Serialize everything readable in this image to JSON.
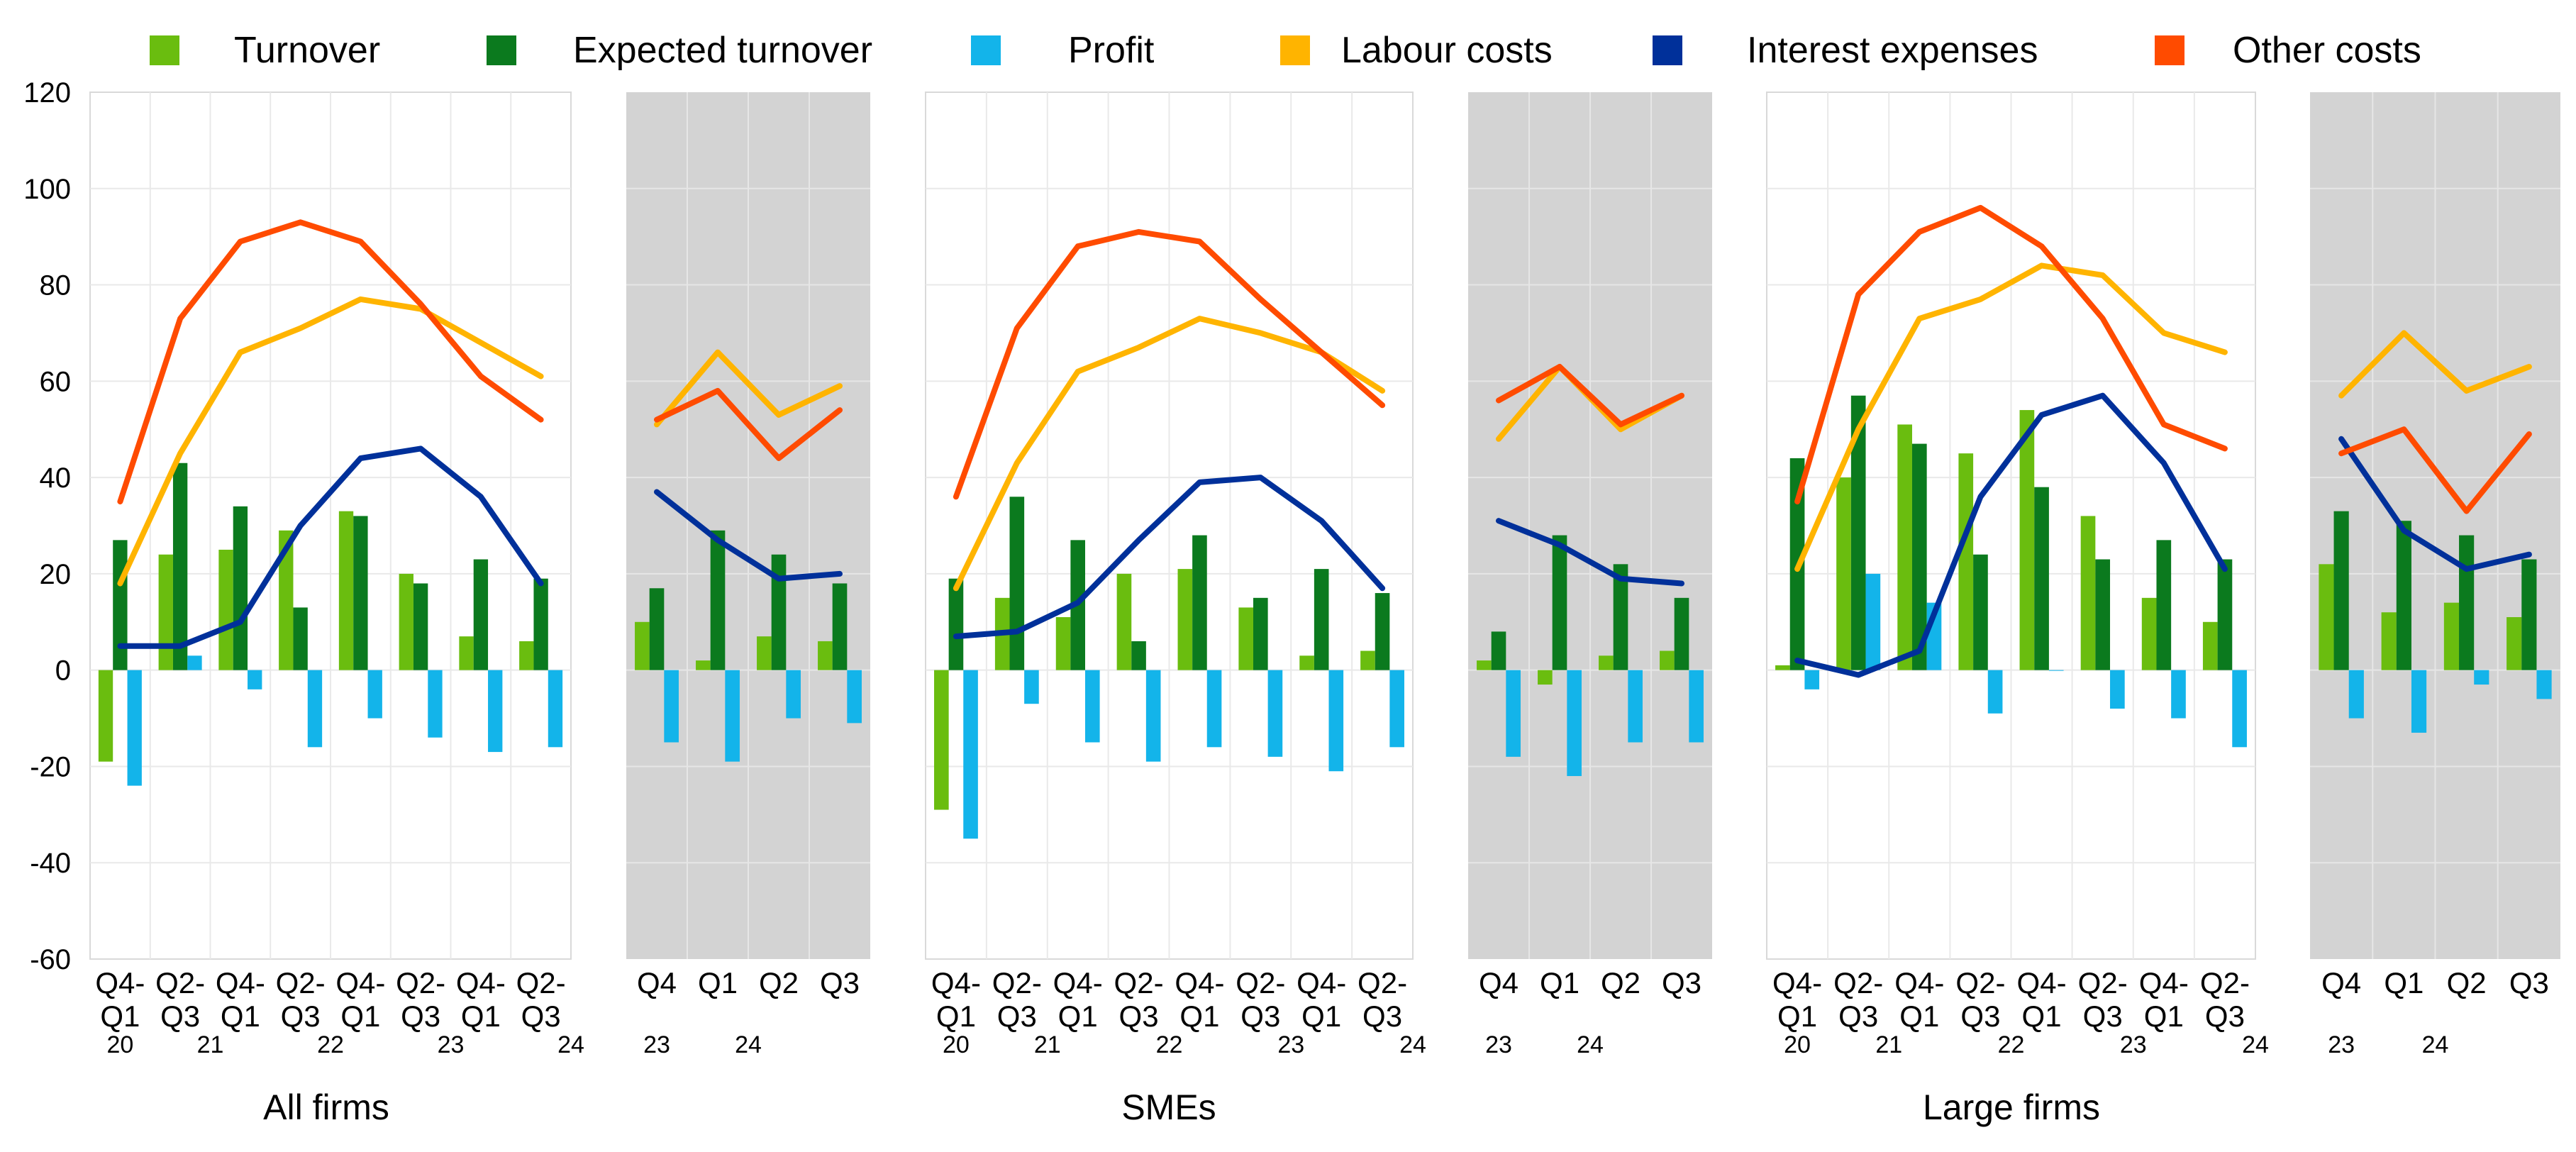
{
  "chart_data": {
    "type": "bar+line",
    "ylim": [
      -60,
      120
    ],
    "yticks": [
      -60,
      -40,
      -20,
      0,
      20,
      40,
      60,
      80,
      100,
      120
    ],
    "grid": true,
    "legend_position": "top",
    "series": [
      {
        "key": "turnover",
        "name": "Turnover",
        "kind": "bar",
        "color": "#6ABD0F"
      },
      {
        "key": "expected_turnover",
        "name": "Expected turnover",
        "kind": "bar",
        "color": "#0B7A1E"
      },
      {
        "key": "profit",
        "name": "Profit",
        "kind": "bar",
        "color": "#13B4EA"
      },
      {
        "key": "labour_costs",
        "name": "Labour costs",
        "kind": "line",
        "color": "#FFB400"
      },
      {
        "key": "interest_expenses",
        "name": "Interest expenses",
        "kind": "line",
        "color": "#00309A"
      },
      {
        "key": "other_costs",
        "name": "Other costs",
        "kind": "line",
        "color": "#FF4B00"
      }
    ],
    "groups": [
      {
        "title": "All firms",
        "panels": [
          {
            "shaded": false,
            "categories": [
              [
                "Q4-",
                "Q1"
              ],
              [
                "Q2-",
                "Q3"
              ],
              [
                "Q4-",
                "Q1"
              ],
              [
                "Q2-",
                "Q3"
              ],
              [
                "Q4-",
                "Q1"
              ],
              [
                "Q2-",
                "Q3"
              ],
              [
                "Q4-",
                "Q1"
              ],
              [
                "Q2-",
                "Q3"
              ]
            ],
            "years": [
              "20",
              "21",
              "22",
              "23",
              "24"
            ],
            "values": {
              "turnover": [
                -19,
                24,
                25,
                29,
                33,
                20,
                7,
                6
              ],
              "expected_turnover": [
                27,
                43,
                34,
                13,
                32,
                18,
                23,
                19
              ],
              "profit": [
                -24,
                3,
                -4,
                -16,
                -10,
                -14,
                -17,
                -16
              ],
              "labour_costs": [
                18,
                45,
                66,
                71,
                77,
                75,
                68,
                61
              ],
              "interest_expenses": [
                5,
                5,
                10,
                30,
                44,
                46,
                36,
                18
              ],
              "other_costs": [
                35,
                73,
                89,
                93,
                89,
                76,
                61,
                52
              ]
            }
          },
          {
            "shaded": true,
            "categories": [
              [
                "Q4"
              ],
              [
                "Q1"
              ],
              [
                "Q2"
              ],
              [
                "Q3"
              ]
            ],
            "years": [
              "23",
              "24"
            ],
            "values": {
              "turnover": [
                10,
                2,
                7,
                6
              ],
              "expected_turnover": [
                17,
                29,
                24,
                18
              ],
              "profit": [
                -15,
                -19,
                -10,
                -11
              ],
              "labour_costs": [
                51,
                66,
                53,
                59
              ],
              "interest_expenses": [
                37,
                27,
                19,
                20
              ],
              "other_costs": [
                52,
                58,
                44,
                54
              ]
            }
          }
        ]
      },
      {
        "title": "SMEs",
        "panels": [
          {
            "shaded": false,
            "categories": [
              [
                "Q4-",
                "Q1"
              ],
              [
                "Q2-",
                "Q3"
              ],
              [
                "Q4-",
                "Q1"
              ],
              [
                "Q2-",
                "Q3"
              ],
              [
                "Q4-",
                "Q1"
              ],
              [
                "Q2-",
                "Q3"
              ],
              [
                "Q4-",
                "Q1"
              ],
              [
                "Q2-",
                "Q3"
              ]
            ],
            "years": [
              "20",
              "21",
              "22",
              "23",
              "24"
            ],
            "values": {
              "turnover": [
                -29,
                15,
                11,
                20,
                21,
                13,
                3,
                4
              ],
              "expected_turnover": [
                19,
                36,
                27,
                6,
                28,
                15,
                21,
                16
              ],
              "profit": [
                -35,
                -7,
                -15,
                -19,
                -16,
                -18,
                -21,
                -16
              ],
              "labour_costs": [
                17,
                43,
                62,
                67,
                73,
                70,
                66,
                58
              ],
              "interest_expenses": [
                7,
                8,
                14,
                27,
                39,
                40,
                31,
                17
              ],
              "other_costs": [
                36,
                71,
                88,
                91,
                89,
                77,
                66,
                55
              ]
            }
          },
          {
            "shaded": true,
            "categories": [
              [
                "Q4"
              ],
              [
                "Q1"
              ],
              [
                "Q2"
              ],
              [
                "Q3"
              ]
            ],
            "years": [
              "23",
              "24"
            ],
            "values": {
              "turnover": [
                2,
                -3,
                3,
                4
              ],
              "expected_turnover": [
                8,
                28,
                22,
                15
              ],
              "profit": [
                -18,
                -22,
                -15,
                -15
              ],
              "labour_costs": [
                48,
                63,
                50,
                57
              ],
              "interest_expenses": [
                31,
                26,
                19,
                18
              ],
              "other_costs": [
                56,
                63,
                51,
                57
              ]
            }
          }
        ]
      },
      {
        "title": "Large firms",
        "panels": [
          {
            "shaded": false,
            "categories": [
              [
                "Q4-",
                "Q1"
              ],
              [
                "Q2-",
                "Q3"
              ],
              [
                "Q4-",
                "Q1"
              ],
              [
                "Q2-",
                "Q3"
              ],
              [
                "Q4-",
                "Q1"
              ],
              [
                "Q2-",
                "Q3"
              ],
              [
                "Q4-",
                "Q1"
              ],
              [
                "Q2-",
                "Q3"
              ]
            ],
            "years": [
              "20",
              "21",
              "22",
              "23",
              "24"
            ],
            "values": {
              "turnover": [
                1,
                40,
                51,
                45,
                54,
                32,
                15,
                10
              ],
              "expected_turnover": [
                44,
                57,
                47,
                24,
                38,
                23,
                27,
                23
              ],
              "profit": [
                -4,
                20,
                14,
                -9,
                0,
                -8,
                -10,
                -16
              ],
              "labour_costs": [
                21,
                50,
                73,
                77,
                84,
                82,
                70,
                66
              ],
              "interest_expenses": [
                2,
                -1,
                4,
                36,
                53,
                57,
                43,
                21
              ],
              "other_costs": [
                35,
                78,
                91,
                96,
                88,
                73,
                51,
                46
              ]
            }
          },
          {
            "shaded": true,
            "categories": [
              [
                "Q4"
              ],
              [
                "Q1"
              ],
              [
                "Q2"
              ],
              [
                "Q3"
              ]
            ],
            "years": [
              "23",
              "24"
            ],
            "values": {
              "turnover": [
                22,
                12,
                14,
                11
              ],
              "expected_turnover": [
                33,
                31,
                28,
                23
              ],
              "profit": [
                -10,
                -13,
                -3,
                -6
              ],
              "labour_costs": [
                57,
                70,
                58,
                63
              ],
              "interest_expenses": [
                48,
                29,
                21,
                24
              ],
              "other_costs": [
                45,
                50,
                33,
                49
              ]
            }
          }
        ]
      }
    ]
  }
}
